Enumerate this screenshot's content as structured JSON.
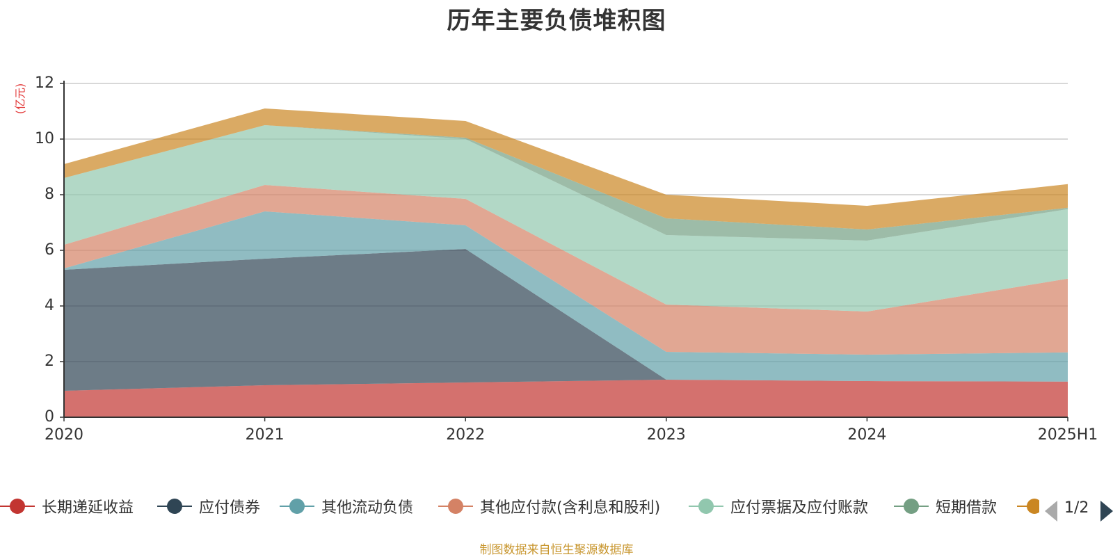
{
  "chart_data": {
    "type": "area",
    "stacked": true,
    "title": "历年主要负债堆积图",
    "ylabel": "(亿元)",
    "xlabel": "",
    "categories": [
      "2020",
      "2021",
      "2022",
      "2023",
      "2024",
      "2025H1"
    ],
    "ylim": [
      0,
      12
    ],
    "yticks": [
      0,
      2,
      4,
      6,
      8,
      10,
      12
    ],
    "grid": true,
    "legend_position": "bottom",
    "series": [
      {
        "name": "长期递延收益",
        "color": "#c23531",
        "values": [
          0.95,
          1.15,
          1.25,
          1.35,
          1.3,
          1.28
        ]
      },
      {
        "name": "应付债券",
        "color": "#2f4554",
        "values": [
          4.35,
          4.55,
          4.8,
          0,
          0,
          0
        ]
      },
      {
        "name": "其他流动负债",
        "color": "#61a0a8",
        "values": [
          0.05,
          1.7,
          0.85,
          1.0,
          0.95,
          1.05
        ]
      },
      {
        "name": "其他应付款(含利息和股利)",
        "color": "#d48265",
        "values": [
          0.85,
          0.95,
          0.95,
          1.7,
          1.55,
          2.65
        ]
      },
      {
        "name": "应付票据及应付账款",
        "color": "#91c7ae",
        "values": [
          2.4,
          2.15,
          2.15,
          2.5,
          2.55,
          2.5
        ]
      },
      {
        "name": "短期借款",
        "color": "#749f83",
        "values": [
          0,
          0,
          0.05,
          0.6,
          0.4,
          0.05
        ]
      },
      {
        "name": "",
        "color": "#ca8622",
        "values": [
          0.5,
          0.6,
          0.6,
          0.85,
          0.85,
          0.85
        ]
      }
    ]
  },
  "pager": {
    "text": "1/2"
  },
  "footer": "制图数据来自恒生聚源数据库"
}
